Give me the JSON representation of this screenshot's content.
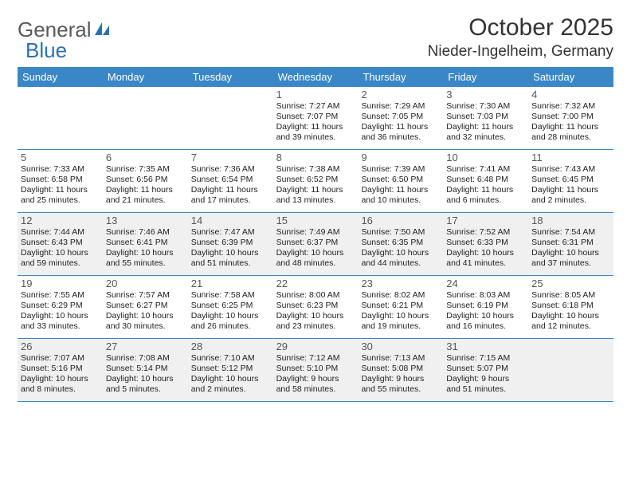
{
  "logo": {
    "part1": "General",
    "part2": "Blue"
  },
  "title": "October 2025",
  "location": "Nieder-Ingelheim, Germany",
  "colors": {
    "header_bg": "#3a87c8",
    "header_text": "#ffffff",
    "border": "#3a87c8",
    "shaded_bg": "#f0f0f0",
    "logo_gray": "#5a5a5a",
    "logo_blue": "#2d6fb5"
  },
  "weekdays": [
    "Sunday",
    "Monday",
    "Tuesday",
    "Wednesday",
    "Thursday",
    "Friday",
    "Saturday"
  ],
  "weeks": [
    {
      "shaded": false,
      "days": [
        {
          "num": "",
          "text": ""
        },
        {
          "num": "",
          "text": ""
        },
        {
          "num": "",
          "text": ""
        },
        {
          "num": "1",
          "text": "Sunrise: 7:27 AM\nSunset: 7:07 PM\nDaylight: 11 hours and 39 minutes."
        },
        {
          "num": "2",
          "text": "Sunrise: 7:29 AM\nSunset: 7:05 PM\nDaylight: 11 hours and 36 minutes."
        },
        {
          "num": "3",
          "text": "Sunrise: 7:30 AM\nSunset: 7:03 PM\nDaylight: 11 hours and 32 minutes."
        },
        {
          "num": "4",
          "text": "Sunrise: 7:32 AM\nSunset: 7:00 PM\nDaylight: 11 hours and 28 minutes."
        }
      ]
    },
    {
      "shaded": false,
      "days": [
        {
          "num": "5",
          "text": "Sunrise: 7:33 AM\nSunset: 6:58 PM\nDaylight: 11 hours and 25 minutes."
        },
        {
          "num": "6",
          "text": "Sunrise: 7:35 AM\nSunset: 6:56 PM\nDaylight: 11 hours and 21 minutes."
        },
        {
          "num": "7",
          "text": "Sunrise: 7:36 AM\nSunset: 6:54 PM\nDaylight: 11 hours and 17 minutes."
        },
        {
          "num": "8",
          "text": "Sunrise: 7:38 AM\nSunset: 6:52 PM\nDaylight: 11 hours and 13 minutes."
        },
        {
          "num": "9",
          "text": "Sunrise: 7:39 AM\nSunset: 6:50 PM\nDaylight: 11 hours and 10 minutes."
        },
        {
          "num": "10",
          "text": "Sunrise: 7:41 AM\nSunset: 6:48 PM\nDaylight: 11 hours and 6 minutes."
        },
        {
          "num": "11",
          "text": "Sunrise: 7:43 AM\nSunset: 6:45 PM\nDaylight: 11 hours and 2 minutes."
        }
      ]
    },
    {
      "shaded": true,
      "days": [
        {
          "num": "12",
          "text": "Sunrise: 7:44 AM\nSunset: 6:43 PM\nDaylight: 10 hours and 59 minutes."
        },
        {
          "num": "13",
          "text": "Sunrise: 7:46 AM\nSunset: 6:41 PM\nDaylight: 10 hours and 55 minutes."
        },
        {
          "num": "14",
          "text": "Sunrise: 7:47 AM\nSunset: 6:39 PM\nDaylight: 10 hours and 51 minutes."
        },
        {
          "num": "15",
          "text": "Sunrise: 7:49 AM\nSunset: 6:37 PM\nDaylight: 10 hours and 48 minutes."
        },
        {
          "num": "16",
          "text": "Sunrise: 7:50 AM\nSunset: 6:35 PM\nDaylight: 10 hours and 44 minutes."
        },
        {
          "num": "17",
          "text": "Sunrise: 7:52 AM\nSunset: 6:33 PM\nDaylight: 10 hours and 41 minutes."
        },
        {
          "num": "18",
          "text": "Sunrise: 7:54 AM\nSunset: 6:31 PM\nDaylight: 10 hours and 37 minutes."
        }
      ]
    },
    {
      "shaded": false,
      "days": [
        {
          "num": "19",
          "text": "Sunrise: 7:55 AM\nSunset: 6:29 PM\nDaylight: 10 hours and 33 minutes."
        },
        {
          "num": "20",
          "text": "Sunrise: 7:57 AM\nSunset: 6:27 PM\nDaylight: 10 hours and 30 minutes."
        },
        {
          "num": "21",
          "text": "Sunrise: 7:58 AM\nSunset: 6:25 PM\nDaylight: 10 hours and 26 minutes."
        },
        {
          "num": "22",
          "text": "Sunrise: 8:00 AM\nSunset: 6:23 PM\nDaylight: 10 hours and 23 minutes."
        },
        {
          "num": "23",
          "text": "Sunrise: 8:02 AM\nSunset: 6:21 PM\nDaylight: 10 hours and 19 minutes."
        },
        {
          "num": "24",
          "text": "Sunrise: 8:03 AM\nSunset: 6:19 PM\nDaylight: 10 hours and 16 minutes."
        },
        {
          "num": "25",
          "text": "Sunrise: 8:05 AM\nSunset: 6:18 PM\nDaylight: 10 hours and 12 minutes."
        }
      ]
    },
    {
      "shaded": true,
      "days": [
        {
          "num": "26",
          "text": "Sunrise: 7:07 AM\nSunset: 5:16 PM\nDaylight: 10 hours and 8 minutes."
        },
        {
          "num": "27",
          "text": "Sunrise: 7:08 AM\nSunset: 5:14 PM\nDaylight: 10 hours and 5 minutes."
        },
        {
          "num": "28",
          "text": "Sunrise: 7:10 AM\nSunset: 5:12 PM\nDaylight: 10 hours and 2 minutes."
        },
        {
          "num": "29",
          "text": "Sunrise: 7:12 AM\nSunset: 5:10 PM\nDaylight: 9 hours and 58 minutes."
        },
        {
          "num": "30",
          "text": "Sunrise: 7:13 AM\nSunset: 5:08 PM\nDaylight: 9 hours and 55 minutes."
        },
        {
          "num": "31",
          "text": "Sunrise: 7:15 AM\nSunset: 5:07 PM\nDaylight: 9 hours and 51 minutes."
        },
        {
          "num": "",
          "text": ""
        }
      ]
    }
  ]
}
